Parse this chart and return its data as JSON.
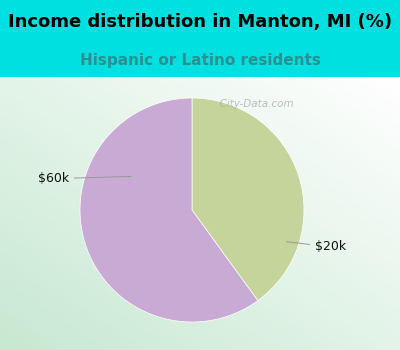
{
  "title": "Income distribution in Manton, MI (%)",
  "subtitle": "Hispanic or Latino residents",
  "slices": [
    {
      "label": "$60k",
      "value": 40,
      "color": "#c5d49a"
    },
    {
      "label": "$20k",
      "value": 60,
      "color": "#c9aad4"
    }
  ],
  "background_color": "#00e0e0",
  "title_fontsize": 13,
  "subtitle_fontsize": 11,
  "title_color": "#000000",
  "subtitle_color": "#2a9090",
  "label_color": "#111111",
  "label_fontsize": 9,
  "watermark": "  City-Data.com",
  "watermark_color": "#aaaaaa",
  "start_angle": 90,
  "counterclock": false,
  "gradient_top_right": "#ffffff",
  "gradient_bottom_left": "#c8e8d0"
}
